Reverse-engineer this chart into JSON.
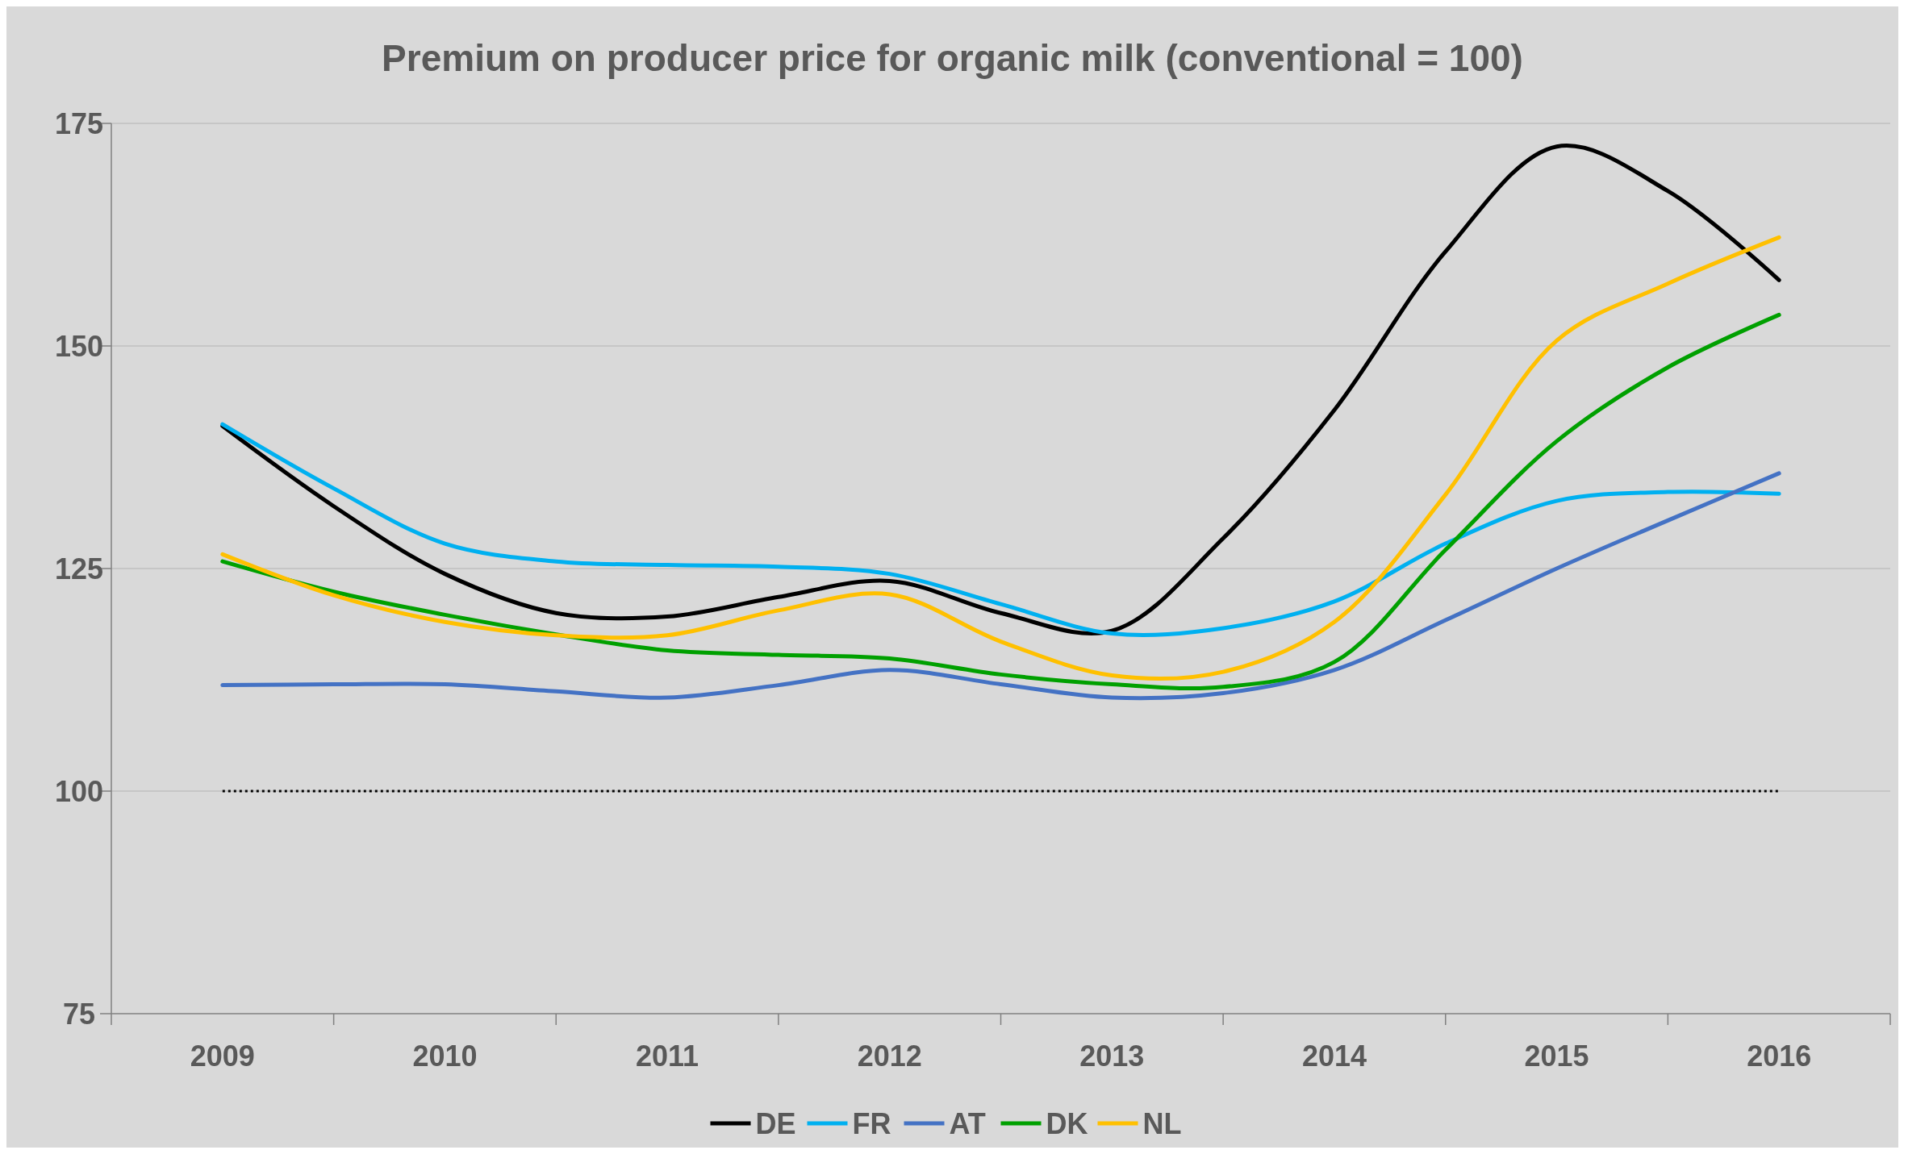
{
  "chart_data": {
    "type": "line",
    "title": "Premium on producer price for organic milk (conventional = 100)",
    "categories": [
      "2009",
      null,
      "2010",
      null,
      "2011",
      null,
      "2012",
      null,
      "2013",
      null,
      "2014",
      null,
      "2015",
      null,
      "2016"
    ],
    "ylim": [
      75,
      175
    ],
    "yticks": [
      75,
      100,
      125,
      150,
      175
    ],
    "grid": "y",
    "legend": "bottom",
    "line_style": "solid",
    "marker": "none",
    "ref_lines": [
      {
        "axis": "y",
        "value": 100,
        "color": "#000000",
        "line_style": "dotted"
      }
    ],
    "series": [
      {
        "name": "DE",
        "color": "#000000",
        "values": [
          141,
          132,
          124.4,
          120,
          119.6,
          121.8,
          123.6,
          120,
          118,
          128.4,
          142.8,
          160.6,
          172.4,
          167.4,
          157.4
        ]
      },
      {
        "name": "FR",
        "color": "#00b0f0",
        "values": [
          141.2,
          134,
          127.8,
          125.8,
          125.4,
          125.2,
          124.4,
          121,
          117.7,
          118.3,
          121.3,
          127.8,
          132.6,
          133.6,
          133.4
        ]
      },
      {
        "name": "AT",
        "color": "#4472c4",
        "values": [
          111.9,
          112,
          112,
          111.2,
          110.5,
          111.9,
          113.6,
          112,
          110.5,
          111,
          113.6,
          119.2,
          125,
          130.4,
          135.7
        ]
      },
      {
        "name": "DK",
        "color": "#00a000",
        "values": [
          125.8,
          122.4,
          119.8,
          117.6,
          115.8,
          115.3,
          114.9,
          113.1,
          112,
          111.7,
          114.5,
          127.1,
          139.3,
          147.6,
          153.5
        ]
      },
      {
        "name": "NL",
        "color": "#ffc000",
        "values": [
          126.6,
          122,
          119,
          117.5,
          117.5,
          120.3,
          122.1,
          116.8,
          113,
          113.4,
          119,
          133.3,
          150.6,
          157,
          162.2
        ]
      }
    ]
  }
}
